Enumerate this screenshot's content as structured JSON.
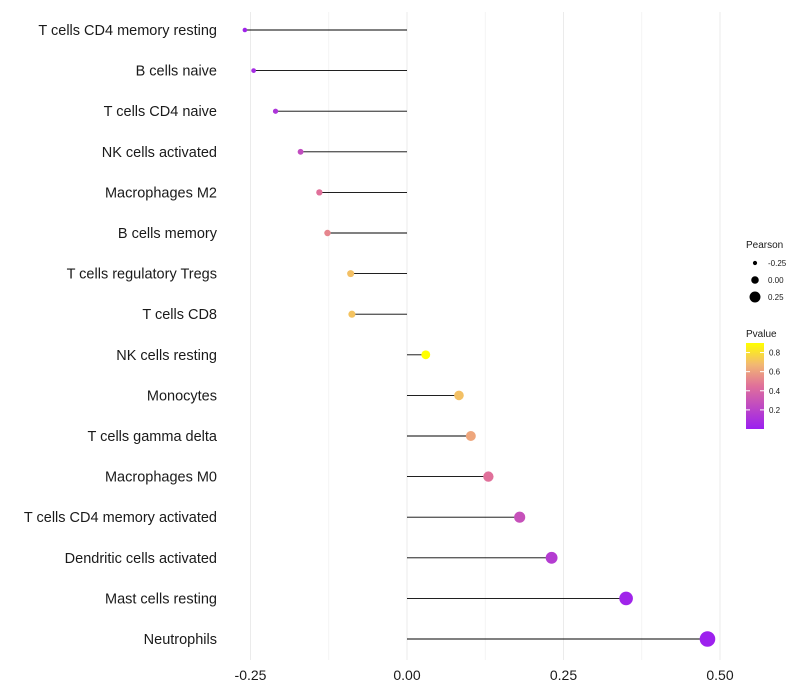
{
  "chart_data": {
    "type": "lollipop",
    "title": "",
    "xlabel": "",
    "ylabel": "",
    "xlim": [
      -0.3,
      0.55
    ],
    "x_ticks": [
      -0.25,
      0.0,
      0.25,
      0.5
    ],
    "x_tick_labels": [
      "-0.25",
      "0.00",
      "0.25",
      "0.50"
    ],
    "grid": true,
    "categories": [
      "T cells CD4 memory resting",
      "B cells naive",
      "T cells CD4 naive",
      "NK cells activated",
      "Macrophages M2",
      "B cells memory",
      "T cells regulatory  Tregs ",
      "T cells CD8",
      "NK cells resting",
      "Monocytes",
      "T cells gamma delta",
      "Macrophages M0",
      "T cells CD4 memory activated",
      "Dendritic cells activated",
      "Mast cells resting",
      "Neutrophils"
    ],
    "values": [
      -0.259,
      -0.245,
      -0.21,
      -0.17,
      -0.14,
      -0.127,
      -0.09,
      -0.088,
      0.03,
      0.083,
      0.102,
      0.13,
      0.18,
      0.231,
      0.35,
      0.48
    ],
    "pvalues": [
      0.03,
      0.07,
      0.12,
      0.25,
      0.45,
      0.52,
      0.7,
      0.71,
      0.9,
      0.7,
      0.62,
      0.45,
      0.28,
      0.16,
      0.03,
      0.01
    ],
    "legend": {
      "size_title": "Pearson",
      "size_entries": [
        {
          "label": "-0.25",
          "value": -0.25
        },
        {
          "label": "0.00",
          "value": 0.0
        },
        {
          "label": "0.25",
          "value": 0.25
        }
      ],
      "color_title": "Pvalue",
      "color_ticks": [
        {
          "label": "0.8",
          "value": 0.8
        },
        {
          "label": "0.6",
          "value": 0.6
        },
        {
          "label": "0.4",
          "value": 0.4
        },
        {
          "label": "0.2",
          "value": 0.2
        }
      ],
      "color_range": [
        0.0,
        0.9
      ],
      "color_low": "#9b1ff0",
      "color_mid": "#e8a070",
      "color_high": "#ffff00",
      "placement": "right"
    }
  }
}
